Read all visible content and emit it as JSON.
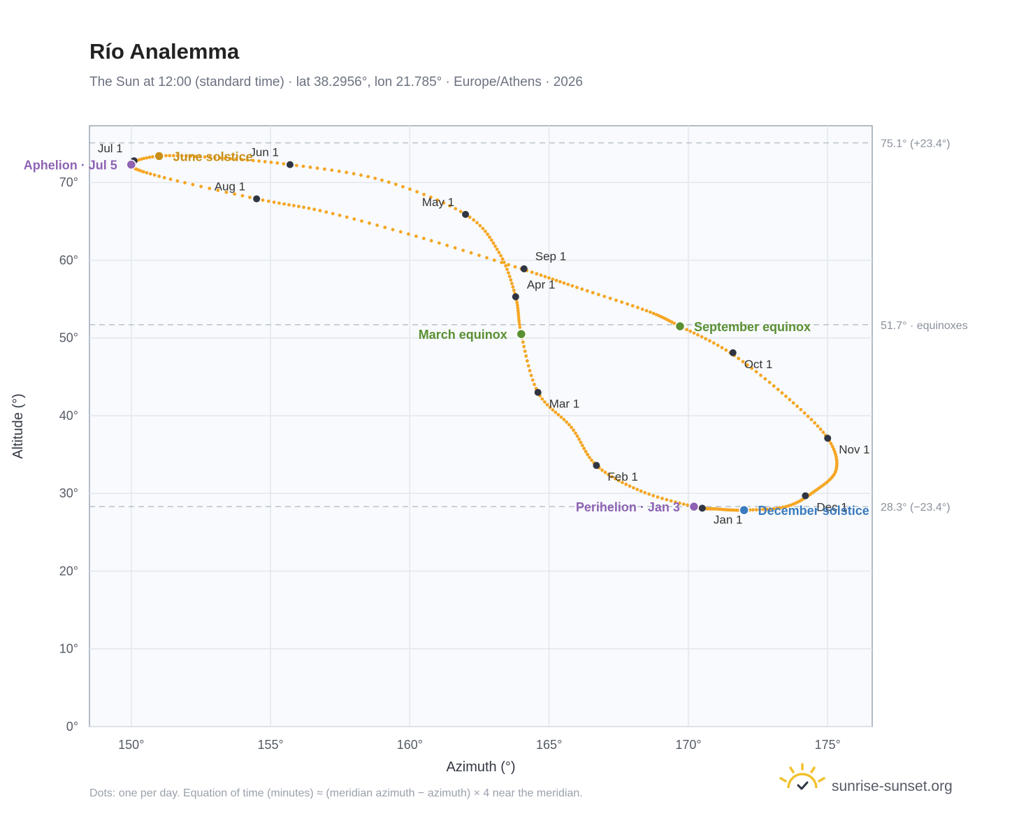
{
  "title": "Río Analemma",
  "subtitle": "The Sun at 12:00 (standard time) · lat 38.2956°, lon 21.785° · Europe/Athens · 2026",
  "footnote": "Dots: one per day. Equation of time (minutes) ≈ (meridian azimuth − azimuth) × 4 near the meridian.",
  "brand": "sunrise-sunset.org",
  "icon": "sun-logo-icon",
  "colors": {
    "curve": "#f5a623",
    "month_dot": "#2f3542",
    "perihelion_aphelion": "#8e63b3",
    "equinox": "#5a8f32",
    "june_solstice": "#c8901a",
    "december_solstice": "#3a7bbf",
    "ref_line": "#b8c2cc",
    "plot_bg": "#f8fafd"
  },
  "chart_data": {
    "type": "scatter",
    "xlabel": "Azimuth (°)",
    "ylabel": "Altitude (°)",
    "xlim": [
      148.5,
      176.6
    ],
    "ylim": [
      0,
      77.3
    ],
    "xticks": [
      150,
      155,
      160,
      165,
      170,
      175
    ],
    "xtick_labels": [
      "150°",
      "155°",
      "160°",
      "165°",
      "170°",
      "175°"
    ],
    "yticks": [
      0,
      10,
      20,
      30,
      40,
      50,
      60,
      70
    ],
    "ytick_labels": [
      "0°",
      "10°",
      "20°",
      "30°",
      "40°",
      "50°",
      "60°",
      "70°"
    ],
    "grid": true,
    "curve_anchors": [
      [
        171.0,
        28.0
      ],
      [
        172.0,
        27.85
      ],
      [
        173.5,
        28.3
      ],
      [
        174.5,
        30.2
      ],
      [
        175.3,
        33.0
      ],
      [
        175.0,
        37.1
      ],
      [
        173.5,
        42.5
      ],
      [
        171.5,
        48.1
      ],
      [
        169.7,
        51.5
      ],
      [
        168.5,
        53.5
      ],
      [
        166.0,
        56.5
      ],
      [
        164.0,
        58.9
      ],
      [
        160.5,
        62.8
      ],
      [
        157.0,
        66.2
      ],
      [
        154.5,
        67.9
      ],
      [
        151.0,
        70.8
      ],
      [
        150.0,
        72.3
      ],
      [
        151.0,
        73.4
      ],
      [
        153.0,
        73.2
      ],
      [
        155.7,
        72.3
      ],
      [
        159.0,
        70.3
      ],
      [
        162.0,
        65.9
      ],
      [
        163.2,
        61.0
      ],
      [
        163.8,
        55.3
      ],
      [
        164.0,
        50.5
      ],
      [
        164.6,
        43.0
      ],
      [
        165.8,
        38.5
      ],
      [
        166.7,
        33.6
      ],
      [
        168.3,
        30.3
      ],
      [
        170.2,
        28.3
      ],
      [
        171.0,
        28.0
      ]
    ],
    "month_markers": [
      {
        "label": "Jan 1",
        "x": 170.5,
        "y": 28.1,
        "pos": "below-right"
      },
      {
        "label": "Feb 1",
        "x": 166.7,
        "y": 33.6,
        "pos": "below-right"
      },
      {
        "label": "Mar 1",
        "x": 164.6,
        "y": 43.0,
        "pos": "below-right"
      },
      {
        "label": "Apr 1",
        "x": 163.8,
        "y": 55.3,
        "pos": "above-right"
      },
      {
        "label": "May 1",
        "x": 162.0,
        "y": 65.9,
        "pos": "above-left"
      },
      {
        "label": "Jun 1",
        "x": 155.7,
        "y": 72.3,
        "pos": "above-left"
      },
      {
        "label": "Jul 1",
        "x": 150.1,
        "y": 72.8,
        "pos": "above-left"
      },
      {
        "label": "Aug 1",
        "x": 154.5,
        "y": 67.9,
        "pos": "above-left"
      },
      {
        "label": "Sep 1",
        "x": 164.1,
        "y": 58.9,
        "pos": "above-right"
      },
      {
        "label": "Oct 1",
        "x": 171.6,
        "y": 48.1,
        "pos": "below-right"
      },
      {
        "label": "Nov 1",
        "x": 175.0,
        "y": 37.1,
        "pos": "below-right"
      },
      {
        "label": "Dec 1",
        "x": 174.2,
        "y": 29.7,
        "pos": "below-right"
      }
    ],
    "events": [
      {
        "label": "Aphelion · Jul 5",
        "x": 150.0,
        "y": 72.3,
        "color": "#8e63b3",
        "side": "left"
      },
      {
        "label": "June solstice",
        "x": 151.0,
        "y": 73.4,
        "color": "#c8901a",
        "side": "right"
      },
      {
        "label": "March equinox",
        "x": 164.0,
        "y": 50.5,
        "color": "#5a8f32",
        "side": "left"
      },
      {
        "label": "September equinox",
        "x": 169.7,
        "y": 51.5,
        "color": "#5a8f32",
        "side": "right"
      },
      {
        "label": "Perihelion · Jan 3",
        "x": 170.2,
        "y": 28.3,
        "color": "#8e63b3",
        "side": "left"
      },
      {
        "label": "December solstice",
        "x": 172.0,
        "y": 27.85,
        "color": "#3a7bbf",
        "side": "right"
      }
    ],
    "reference_lines": [
      {
        "y": 75.1,
        "label": "75.1° (+23.4°)"
      },
      {
        "y": 51.7,
        "label": "51.7° · equinoxes"
      },
      {
        "y": 28.3,
        "label": "28.3° (−23.4°)"
      }
    ]
  }
}
